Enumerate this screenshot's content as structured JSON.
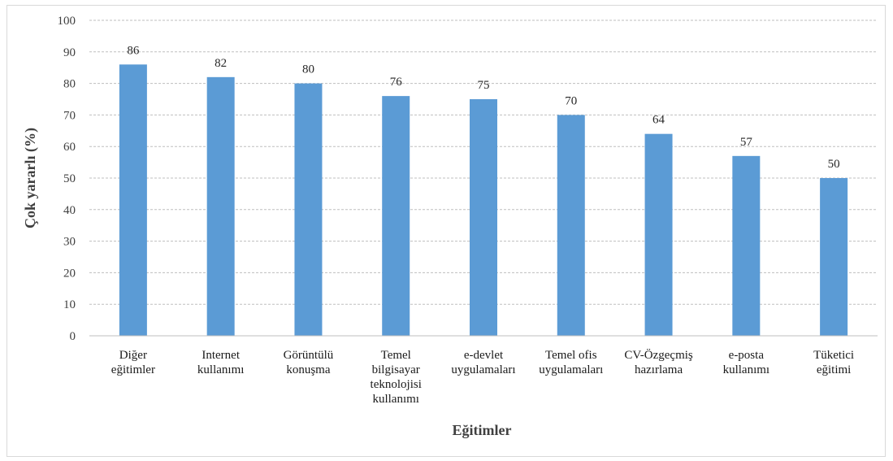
{
  "chart_data": {
    "type": "bar",
    "categories": [
      "Diğer eğitimler",
      "Internet kullanımı",
      "Görüntülü konuşma",
      "Temel bilgisayar teknolojisi kullanımı",
      "e-devlet uygulamaları",
      "Temel ofis uygulamaları",
      "CV-Özgeçmiş hazırlama",
      "e-posta kullanımı",
      "Tüketici eğitimi"
    ],
    "category_lines": [
      [
        "Diğer",
        "eğitimler"
      ],
      [
        "Internet",
        "kullanımı"
      ],
      [
        "Görüntülü",
        "konuşma"
      ],
      [
        "Temel",
        "bilgisayar",
        "teknolojisi",
        "kullanımı"
      ],
      [
        "e-devlet",
        "uygulamaları"
      ],
      [
        "Temel ofis",
        "uygulamaları"
      ],
      [
        "CV-Özgeçmiş",
        "hazırlama"
      ],
      [
        "e-posta",
        "kullanımı"
      ],
      [
        "Tüketici",
        "eğitimi"
      ]
    ],
    "values": [
      86,
      82,
      80,
      76,
      75,
      70,
      64,
      57,
      50
    ],
    "xlabel": "Eğitimler",
    "ylabel": "Çok yararlı (%)",
    "ylim": [
      0,
      100
    ],
    "yticks": [
      0,
      10,
      20,
      30,
      40,
      50,
      60,
      70,
      80,
      90,
      100
    ],
    "grid": true,
    "data_labels": true,
    "legend": "none",
    "bar_color": "#5b9bd5",
    "grid_color": "#bfbfbf"
  }
}
